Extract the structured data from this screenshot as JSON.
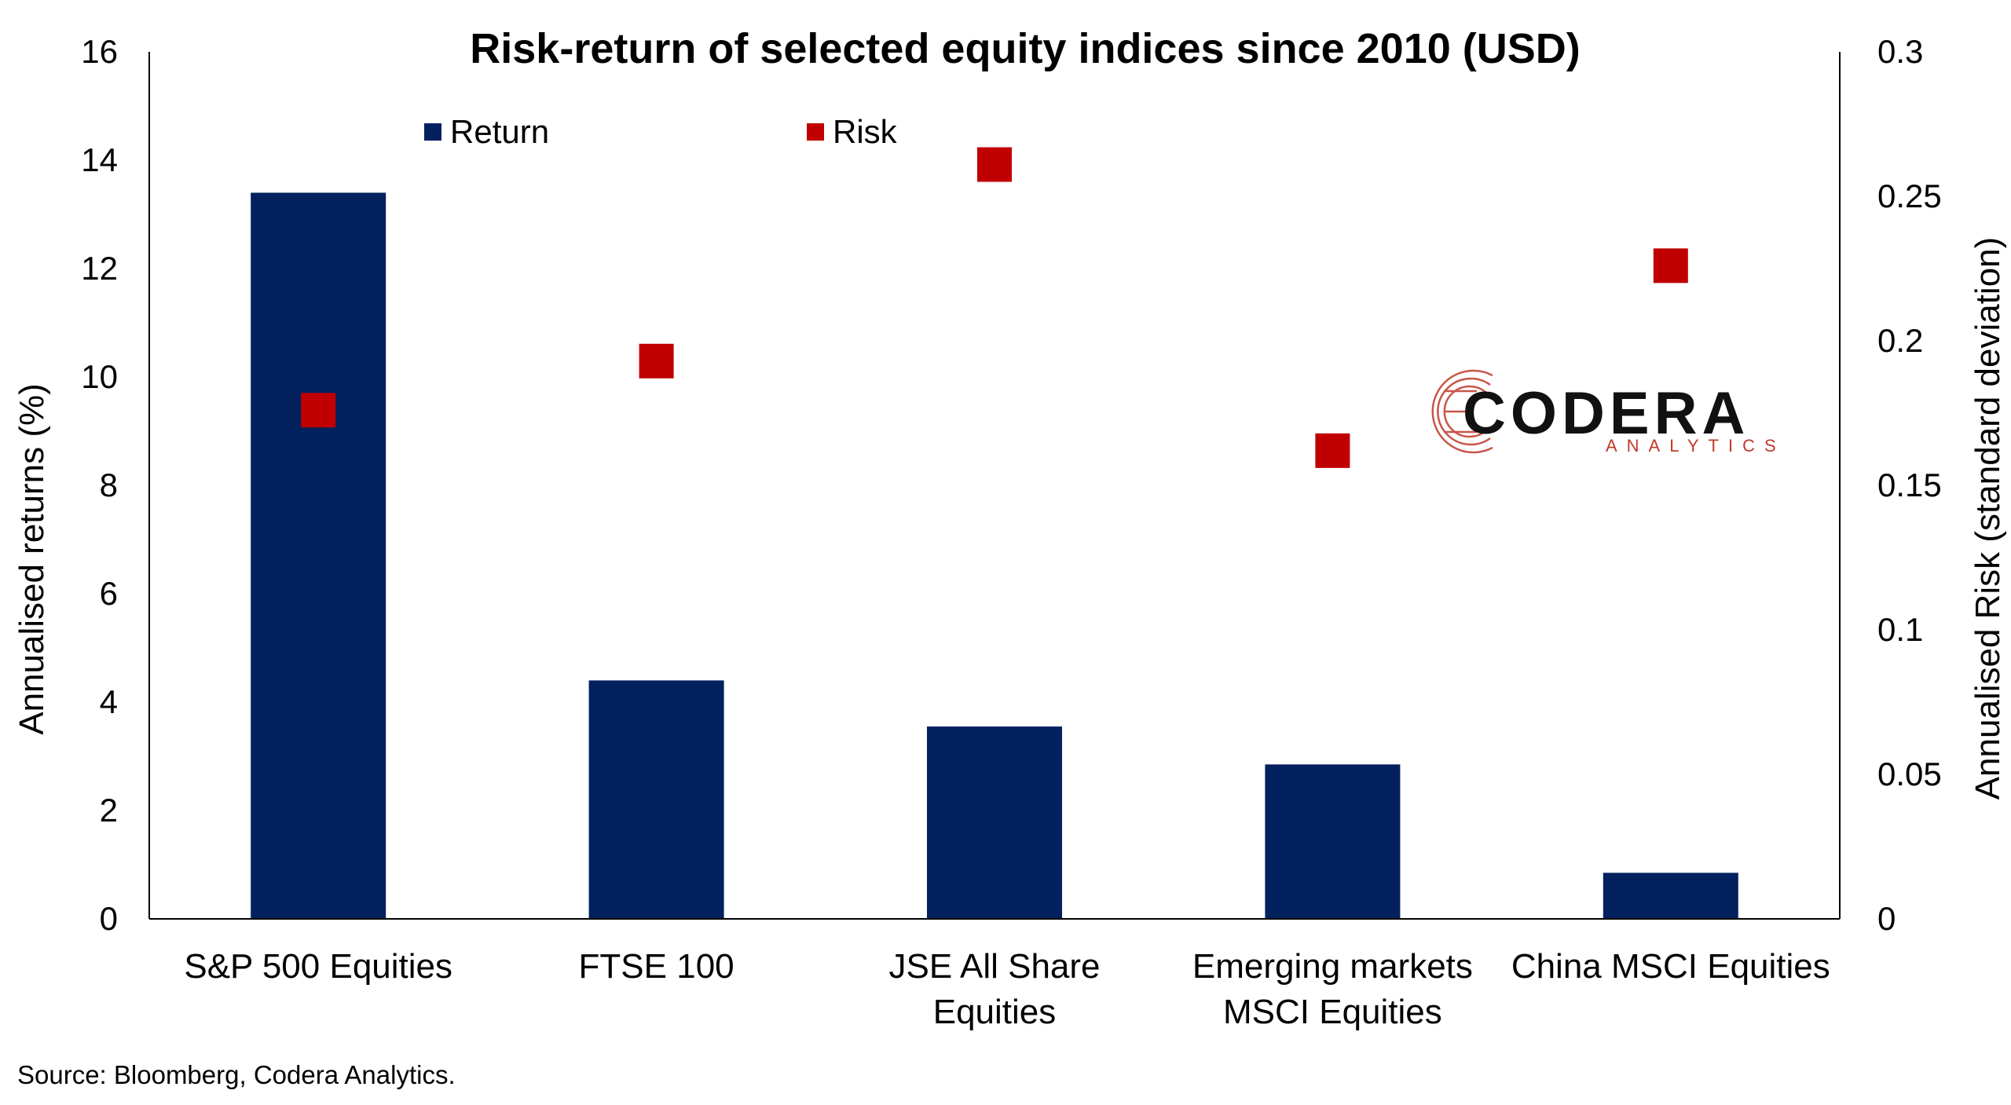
{
  "colors": {
    "return": "#02215e",
    "risk": "#c00000",
    "axis": "#000000"
  },
  "logo": {
    "name": "CODERA",
    "sub": "ANALYTICS"
  },
  "source": "Source: Bloomberg, Codera Analytics.",
  "chart_data": {
    "type": "bar",
    "title": "Risk-return of selected equity indices since 2010 (USD)",
    "categories": [
      [
        "S&P 500 Equities"
      ],
      [
        "FTSE 100"
      ],
      [
        "JSE All Share",
        "Equities"
      ],
      [
        "Emerging markets",
        "MSCI Equities"
      ],
      [
        "China MSCI Equities"
      ]
    ],
    "ylabel": "Annualised returns (%)",
    "y2label": "Annualised Risk (standard deviation)",
    "ylim": [
      0,
      16
    ],
    "yticks": [
      "0",
      "2",
      "4",
      "6",
      "8",
      "10",
      "12",
      "14",
      "16"
    ],
    "y2lim": [
      0,
      0.3
    ],
    "y2ticks": [
      "0",
      "0.05",
      "0.1",
      "0.15",
      "0.2",
      "0.25",
      "0.3"
    ],
    "legend_position": "top-left",
    "grid": false,
    "series": [
      {
        "name": "Return",
        "type": "bar",
        "axis": "left",
        "values": [
          13.4,
          4.4,
          3.55,
          2.85,
          0.85
        ]
      },
      {
        "name": "Risk",
        "type": "scatter",
        "axis": "right",
        "values": [
          0.176,
          0.193,
          0.261,
          0.162,
          0.226
        ]
      }
    ]
  }
}
